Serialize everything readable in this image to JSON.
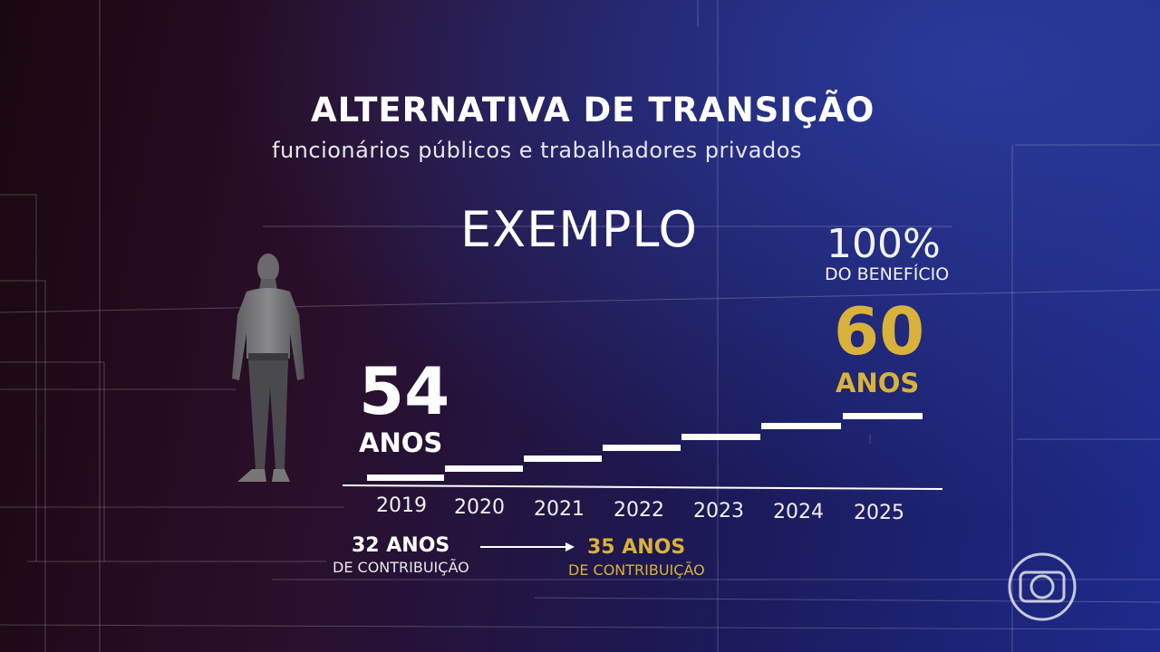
{
  "title": "ALTERNATIVA DE TRANSIÇÃO",
  "subtitle": "funcionários públicos e trabalhadores privados",
  "example_label": "EXEMPLO",
  "benefit": {
    "value": "100%",
    "label": "DO BENEFÍCIO"
  },
  "target_age": {
    "value": "60",
    "label": "ANOS"
  },
  "start_age": {
    "value": "54",
    "label": "ANOS"
  },
  "years": [
    "2019",
    "2020",
    "2021",
    "2022",
    "2023",
    "2024",
    "2025"
  ],
  "contribution": {
    "current": {
      "value": "32 ANOS",
      "label": "DE CONTRIBUIÇÃO"
    },
    "target": {
      "value": "35 ANOS",
      "label": "DE CONTRIBUIÇÃO"
    }
  },
  "colors": {
    "accent_gold": "#d8b23a",
    "text": "#ffffff"
  },
  "icons": {
    "person": "person-silhouette-icon",
    "logo": "globo-logo-icon",
    "arrow": "arrow-right-icon"
  }
}
